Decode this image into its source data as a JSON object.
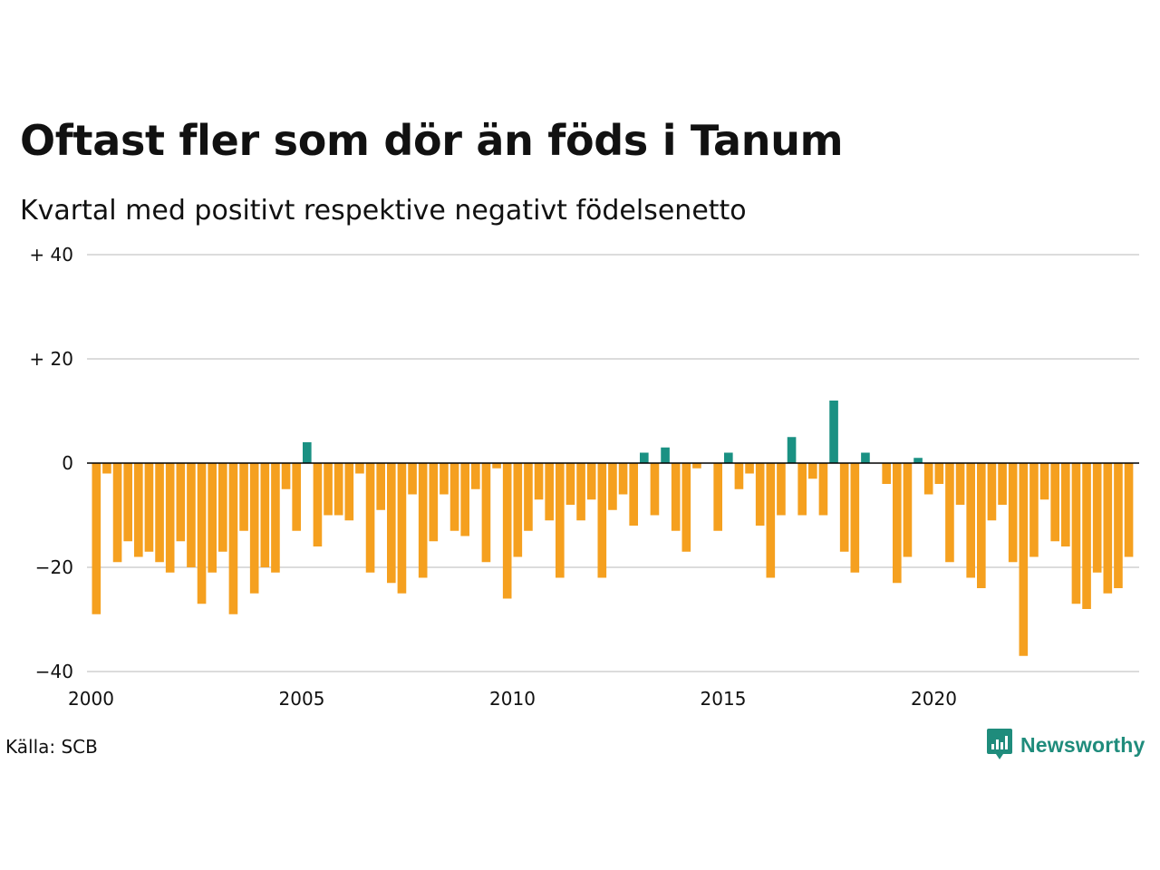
{
  "title": "Oftast fler som dör än föds i Tanum",
  "subtitle": "Kvartal med positivt respektive negativt födelsenetto",
  "source": "Källa: SCB",
  "brand": {
    "name": "Newsworthy",
    "icon": "newsworthy-logo-icon",
    "color": "#1f8c7c"
  },
  "colors": {
    "positive": "#1a9183",
    "negative": "#f5a01f",
    "grid": "#dcdcdc",
    "zero_line": "#000000"
  },
  "chart_data": {
    "type": "bar",
    "title": "Oftast fler som dör än föds i Tanum",
    "subtitle": "Kvartal med positivt respektive negativt födelsenetto",
    "ylim": [
      -40,
      40
    ],
    "y_ticks": [
      {
        "value": 40,
        "label": "+ 40"
      },
      {
        "value": 20,
        "label": "+ 20"
      },
      {
        "value": 0,
        "label": "0"
      },
      {
        "value": -20,
        "label": "−20"
      },
      {
        "value": -40,
        "label": "−40"
      }
    ],
    "x_ticks": [
      {
        "value": 2000,
        "label": "2000"
      },
      {
        "value": 2005,
        "label": "2005"
      },
      {
        "value": 2010,
        "label": "2010"
      },
      {
        "value": 2015,
        "label": "2015"
      },
      {
        "value": 2020,
        "label": "2020"
      }
    ],
    "x_start": 2000,
    "periods_per_year": 4,
    "grid": true,
    "legend": "none",
    "values": [
      -29,
      -2,
      -19,
      -15,
      -18,
      -17,
      -19,
      -21,
      -15,
      -20,
      -27,
      -21,
      -17,
      -29,
      -13,
      -25,
      -20,
      -21,
      -5,
      -13,
      4,
      -16,
      -10,
      -10,
      -11,
      -2,
      -21,
      -9,
      -23,
      -25,
      -6,
      -22,
      -15,
      -6,
      -13,
      -14,
      -5,
      -19,
      -1,
      -26,
      -18,
      -13,
      -7,
      -11,
      -22,
      -8,
      -11,
      -7,
      -22,
      -9,
      -6,
      -12,
      2,
      -10,
      3,
      -13,
      -17,
      -1,
      0,
      -13,
      2,
      -5,
      -2,
      -12,
      -22,
      -10,
      5,
      -10,
      -3,
      -10,
      12,
      -17,
      -21,
      2,
      0,
      -4,
      -23,
      -18,
      1,
      -6,
      -4,
      -19,
      -8,
      -22,
      -24,
      -11,
      -8,
      -19,
      -37,
      -18,
      -7,
      -15,
      -16,
      -27,
      -28,
      -21,
      -25,
      -24,
      -18
    ]
  }
}
